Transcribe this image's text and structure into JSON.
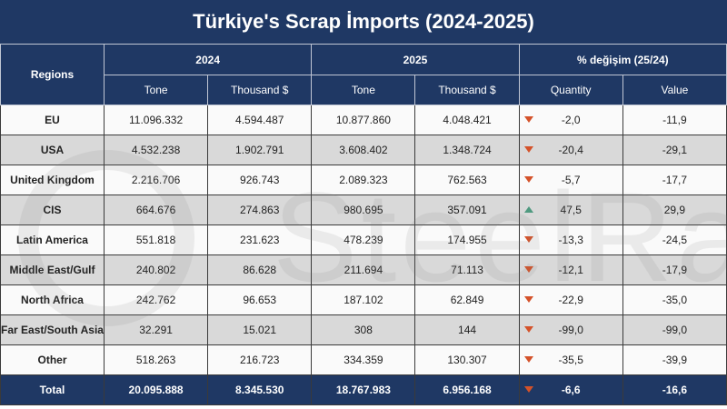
{
  "title": "Türkiye's Scrap İmports (2024-2025)",
  "watermark": "SteelRadar",
  "colors": {
    "header": "#1f3864",
    "down": "#d4522a",
    "up": "#4f9a80",
    "row_alt": "#d9d9d9"
  },
  "headers": {
    "regions": "Regions",
    "year1": "2024",
    "year2": "2025",
    "change": "% değişim (25/24)",
    "tone": "Tone",
    "thousand": "Thousand $",
    "quantity": "Quantity",
    "value": "Value"
  },
  "rows": [
    {
      "region": "EU",
      "tone_2024": "11.096.332",
      "usd_2024": "4.594.487",
      "tone_2025": "10.877.860",
      "usd_2025": "4.048.421",
      "quantity": "-2,0",
      "value": "-11,9",
      "trend": "down"
    },
    {
      "region": "USA",
      "tone_2024": "4.532.238",
      "usd_2024": "1.902.791",
      "tone_2025": "3.608.402",
      "usd_2025": "1.348.724",
      "quantity": "-20,4",
      "value": "-29,1",
      "trend": "down"
    },
    {
      "region": "United Kingdom",
      "tone_2024": "2.216.706",
      "usd_2024": "926.743",
      "tone_2025": "2.089.323",
      "usd_2025": "762.563",
      "quantity": "-5,7",
      "value": "-17,7",
      "trend": "down"
    },
    {
      "region": "CIS",
      "tone_2024": "664.676",
      "usd_2024": "274.863",
      "tone_2025": "980.695",
      "usd_2025": "357.091",
      "quantity": "47,5",
      "value": "29,9",
      "trend": "up"
    },
    {
      "region": "Latin America",
      "tone_2024": "551.818",
      "usd_2024": "231.623",
      "tone_2025": "478.239",
      "usd_2025": "174.955",
      "quantity": "-13,3",
      "value": "-24,5",
      "trend": "down"
    },
    {
      "region": "Middle East/Gulf",
      "tone_2024": "240.802",
      "usd_2024": "86.628",
      "tone_2025": "211.694",
      "usd_2025": "71.113",
      "quantity": "-12,1",
      "value": "-17,9",
      "trend": "down"
    },
    {
      "region": "North Africa",
      "tone_2024": "242.762",
      "usd_2024": "96.653",
      "tone_2025": "187.102",
      "usd_2025": "62.849",
      "quantity": "-22,9",
      "value": "-35,0",
      "trend": "down"
    },
    {
      "region": "Far East/South Asia",
      "tone_2024": "32.291",
      "usd_2024": "15.021",
      "tone_2025": "308",
      "usd_2025": "144",
      "quantity": "-99,0",
      "value": "-99,0",
      "trend": "down"
    },
    {
      "region": "Other",
      "tone_2024": "518.263",
      "usd_2024": "216.723",
      "tone_2025": "334.359",
      "usd_2025": "130.307",
      "quantity": "-35,5",
      "value": "-39,9",
      "trend": "down"
    }
  ],
  "total": {
    "region": "Total",
    "tone_2024": "20.095.888",
    "usd_2024": "8.345.530",
    "tone_2025": "18.767.983",
    "usd_2025": "6.956.168",
    "quantity": "-6,6",
    "value": "-16,6",
    "trend": "down"
  }
}
